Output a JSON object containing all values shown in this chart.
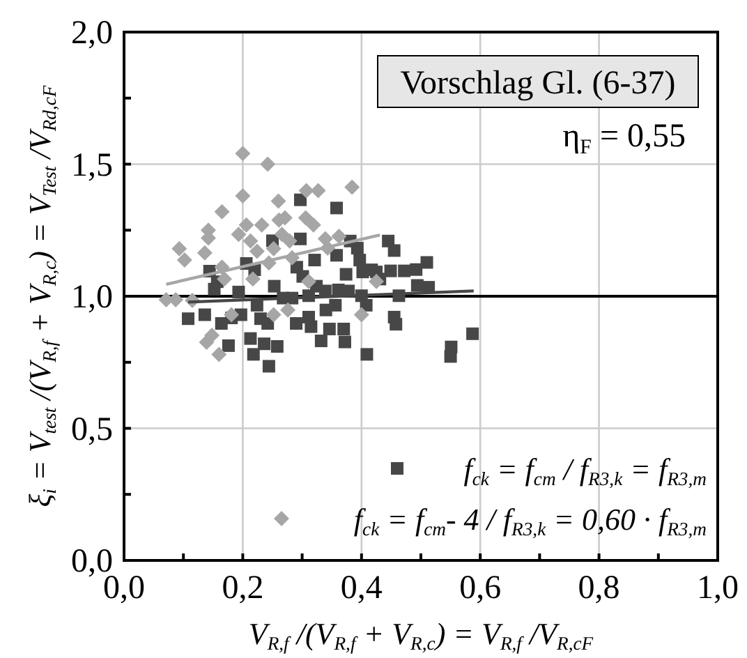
{
  "chart_data": {
    "type": "scatter",
    "xlabel": "V$_{R,f}$ /(V$_{R,f}$ + V$_{R,c}$) = V$_{R,f}$ /V$_{R,cF}$",
    "ylabel": "ξ$_{i}$ = V$_{test}$ /(V$_{R,f}$ + V$_{R,c}$) = V$_{Test}$ /V$_{Rd,cF}$",
    "annotations": [
      "Vorschlag Gl. (6-37)",
      "η$_{F}$ = 0,55"
    ],
    "xlim": [
      0,
      1
    ],
    "ylim": [
      0,
      2
    ],
    "xticks": [
      {
        "value": 0,
        "label": "0,0"
      },
      {
        "value": 0.1,
        "label": null
      },
      {
        "value": 0.2,
        "label": "0,2"
      },
      {
        "value": 0.3,
        "label": null
      },
      {
        "value": 0.4,
        "label": "0,4"
      },
      {
        "value": 0.5,
        "label": null
      },
      {
        "value": 0.6,
        "label": "0,6"
      },
      {
        "value": 0.7,
        "label": null
      },
      {
        "value": 0.8,
        "label": "0,8"
      },
      {
        "value": 0.9,
        "label": null
      },
      {
        "value": 1,
        "label": "1,0"
      }
    ],
    "yticks": [
      {
        "value": 0,
        "label": "0,0"
      },
      {
        "value": 0.25,
        "label": null
      },
      {
        "value": 0.5,
        "label": "0,5"
      },
      {
        "value": 0.75,
        "label": null
      },
      {
        "value": 1,
        "label": "1,0"
      },
      {
        "value": 1.25,
        "label": null
      },
      {
        "value": 1.5,
        "label": "1,5"
      },
      {
        "value": 1.75,
        "label": null
      },
      {
        "value": 2,
        "label": "2,0"
      }
    ],
    "grid": true,
    "legend": "bottom right",
    "ref_lines": [
      {
        "axis": "y",
        "value": 1,
        "color": "#000000"
      }
    ],
    "series": [
      {
        "name": "f$_{ck}$ = f$_{cm}$  / f$_{R3,k}$ = f$_{R3,m}$",
        "marker": "square",
        "color": "#474747",
        "x": [
          0.108,
          0.136,
          0.144,
          0.157,
          0.152,
          0.176,
          0.164,
          0.181,
          0.193,
          0.197,
          0.206,
          0.213,
          0.218,
          0.22,
          0.224,
          0.23,
          0.236,
          0.244,
          0.242,
          0.25,
          0.253,
          0.258,
          0.268,
          0.283,
          0.29,
          0.297,
          0.297,
          0.291,
          0.301,
          0.311,
          0.311,
          0.315,
          0.321,
          0.324,
          0.332,
          0.339,
          0.34,
          0.346,
          0.358,
          0.358,
          0.356,
          0.361,
          0.37,
          0.372,
          0.378,
          0.374,
          0.381,
          0.393,
          0.397,
          0.402,
          0.4,
          0.408,
          0.409,
          0.417,
          0.425,
          0.431,
          0.445,
          0.455,
          0.449,
          0.463,
          0.455,
          0.458,
          0.472,
          0.492,
          0.51,
          0.494,
          0.513,
          0.551,
          0.55,
          0.587
        ],
        "values": [
          0.915,
          0.93,
          1.095,
          1.055,
          1.027,
          0.813,
          0.897,
          0.918,
          1.016,
          0.93,
          1.124,
          0.84,
          0.78,
          1.1,
          0.966,
          0.915,
          0.82,
          0.735,
          0.897,
          1.21,
          1.038,
          0.81,
          0.993,
          0.993,
          0.897,
          1.365,
          1.217,
          1.11,
          1.075,
          1.002,
          0.921,
          0.885,
          1.137,
          1.038,
          0.831,
          1.02,
          0.948,
          0.876,
          1.334,
          1.155,
          0.966,
          1.024,
          0.876,
          0.827,
          1.02,
          1.083,
          1.209,
          1.182,
          1.137,
          1.092,
          1.002,
          0.966,
          0.78,
          1.1,
          1.092,
          1.065,
          1.209,
          1.173,
          1.096,
          1.002,
          0.921,
          0.894,
          1.096,
          1.101,
          1.128,
          1.041,
          1.034,
          0.808,
          0.772,
          0.858
        ]
      },
      {
        "name": "f$_{ck}$ = f$_{cm}$- 4 / f$_{R3,k}$ = 0,60 · f$_{R3,m}$",
        "marker": "diamond",
        "color": "#a6a6a6",
        "x": [
          0.071,
          0.087,
          0.093,
          0.102,
          0.115,
          0.136,
          0.142,
          0.142,
          0.139,
          0.148,
          0.16,
          0.165,
          0.165,
          0.169,
          0.181,
          0.193,
          0.2,
          0.2,
          0.206,
          0.213,
          0.217,
          0.224,
          0.232,
          0.242,
          0.244,
          0.252,
          0.26,
          0.261,
          0.266,
          0.271,
          0.279,
          0.283,
          0.306,
          0.307,
          0.311,
          0.319,
          0.327,
          0.339,
          0.343,
          0.362,
          0.384,
          0.4,
          0.425,
          0.276,
          0.252
        ],
        "values": [
          0.987,
          0.987,
          1.18,
          1.137,
          0.984,
          1.164,
          1.22,
          1.25,
          0.826,
          0.852,
          0.78,
          1.32,
          1.11,
          1.065,
          0.93,
          1.234,
          1.54,
          1.38,
          1.27,
          1.209,
          1.065,
          1.17,
          1.27,
          1.5,
          1.126,
          1.18,
          1.36,
          1.288,
          1.234,
          1.297,
          1.209,
          1.146,
          1.297,
          1.4,
          1.056,
          1.27,
          1.4,
          1.218,
          1.182,
          1.227,
          1.413,
          0.93,
          1.056,
          0.948,
          0.93
        ]
      },
      {
        "type": "line",
        "color": "#a6a6a6",
        "x": [
          0.071,
          0.431
        ],
        "values": [
          1.045,
          1.232
        ]
      },
      {
        "type": "line",
        "color": "#474747",
        "x": [
          0.108,
          0.589
        ],
        "values": [
          0.978,
          1.02
        ]
      }
    ]
  }
}
